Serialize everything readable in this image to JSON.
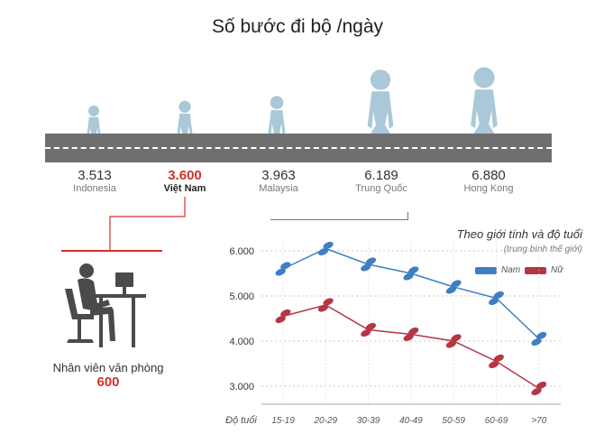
{
  "title": "Số bước đi bộ /ngày",
  "countries": [
    {
      "value": "3.513",
      "name": "Indonesia",
      "highlight": false
    },
    {
      "value": "3.600",
      "name": "Việt Nam",
      "highlight": true
    },
    {
      "value": "3.963",
      "name": "Malaysia",
      "highlight": false
    },
    {
      "value": "6.189",
      "name": "Trung Quốc",
      "highlight": false
    },
    {
      "value": "6.880",
      "name": "Hong Kong",
      "highlight": false
    }
  ],
  "office": {
    "label": "Nhân viên văn phòng",
    "value": "600"
  },
  "colors": {
    "male": "#3f7ec3",
    "female": "#b53545",
    "highlight": "#d4302a",
    "figure": "#a9c8d8",
    "road": "#6f6f6f",
    "office_figure": "#4a4a4a"
  },
  "chart_data": {
    "type": "line",
    "title": "Theo giới tính và độ tuổi",
    "subtitle": "(trung bình thế giới)",
    "xlabel": "Độ tuổi",
    "categories": [
      "15-19",
      "20-29",
      "30-39",
      "40-49",
      "50-59",
      "60-69",
      ">70"
    ],
    "series": [
      {
        "name": "Nam",
        "color": "#3f7ec3",
        "values": [
          5600,
          6050,
          5700,
          5500,
          5200,
          4950,
          4050
        ]
      },
      {
        "name": "Nữ",
        "color": "#b53545",
        "values": [
          4550,
          4800,
          4250,
          4150,
          4000,
          3550,
          2950
        ]
      }
    ],
    "yticks": [
      "6.000",
      "5.000",
      "4.000",
      "3.000"
    ],
    "ytick_values": [
      6000,
      5000,
      4000,
      3000
    ],
    "ylim": [
      2700,
      6400
    ],
    "grid": "horizontal dotted",
    "legend": "top-right"
  }
}
